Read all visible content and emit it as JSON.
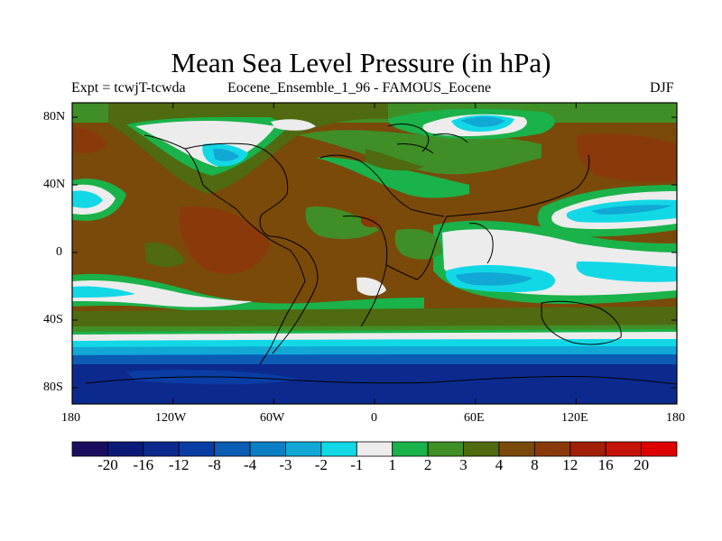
{
  "title": "Mean Sea Level Pressure (in hPa)",
  "subtitle_left": "Expt = tcwjT-tcwda",
  "subtitle_center": "Eocene_Ensemble_1_96 - FAMOUS_Eocene",
  "subtitle_right": "DJF",
  "lat_labels": [
    "80N",
    "40N",
    "0",
    "40S",
    "80S"
  ],
  "lon_labels": [
    "180",
    "120W",
    "60W",
    "0",
    "60E",
    "120E",
    "180"
  ],
  "colorbar": {
    "labels": [
      "-20",
      "-16",
      "-12",
      "-8",
      "-4",
      "-3",
      "-2",
      "-1",
      "1",
      "2",
      "3",
      "4",
      "8",
      "12",
      "16",
      "20"
    ],
    "colors": [
      "#1c0e5e",
      "#0b1a78",
      "#0c2a8e",
      "#0a3da4",
      "#0a5cb4",
      "#0b7fc4",
      "#11a8d6",
      "#12d8e6",
      "#ececec",
      "#1ab24a",
      "#3f8f26",
      "#4f6a10",
      "#7a4a0a",
      "#8a3a0a",
      "#a02008",
      "#c41408",
      "#dd0000"
    ]
  },
  "colors": {
    "sea_brown": "#7a4a0a",
    "olive": "#4f6a10",
    "green": "#3f8f26",
    "light_green": "#1ab24a",
    "white": "#ececec",
    "cyan": "#12d8e6",
    "blue_mid": "#11a8d6",
    "blue": "#0a5cb4",
    "deep_blue": "#0c2a8e",
    "red_brown": "#8a3a0a"
  }
}
